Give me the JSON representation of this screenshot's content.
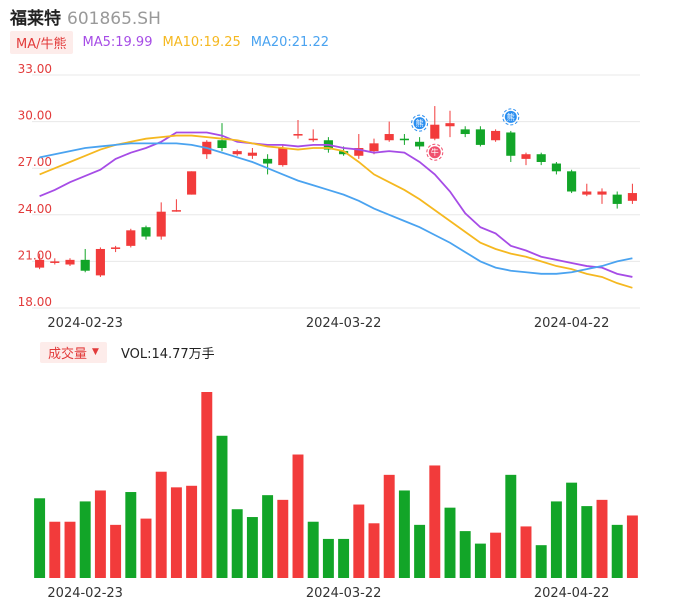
{
  "header": {
    "name": "福莱特",
    "code": "601865.SH"
  },
  "ma_legend": {
    "tag": "MA/牛熊",
    "ma5": "MA5:19.99",
    "ma10": "MA10:19.25",
    "ma20": "MA20:21.22"
  },
  "volume_legend": {
    "tag": "成交量",
    "value": "VOL:14.77万手"
  },
  "colors": {
    "up": "#f23b3b",
    "down": "#12a528",
    "ma5": "#a64ce6",
    "ma10": "#f5b820",
    "ma20": "#4aa3f0",
    "grid": "#e8e8e8",
    "axis_label": "#e23b3b",
    "text": "#333333"
  },
  "markers": [
    {
      "label": "熊",
      "index": 25,
      "kind": "bear"
    },
    {
      "label": "牛",
      "index": 26,
      "kind": "bull"
    },
    {
      "label": "熊",
      "index": 31,
      "kind": "bear"
    }
  ],
  "chart_data": [
    {
      "type": "candlestick",
      "y_ticks": [
        "33.00",
        "30.00",
        "27.00",
        "24.00",
        "21.00",
        "18.00"
      ],
      "ylim": [
        18,
        33
      ],
      "x_labels": [
        {
          "index": 3,
          "label": "2024-02-23"
        },
        {
          "index": 20,
          "label": "2024-03-22"
        },
        {
          "index": 35,
          "label": "2024-04-22"
        }
      ],
      "candles": [
        {
          "o": 20.6,
          "c": 21.1,
          "h": 21.5,
          "l": 20.5
        },
        {
          "o": 20.9,
          "c": 21.0,
          "h": 21.2,
          "l": 20.8
        },
        {
          "o": 20.8,
          "c": 21.1,
          "h": 21.2,
          "l": 20.7
        },
        {
          "o": 21.1,
          "c": 20.4,
          "h": 21.8,
          "l": 20.3
        },
        {
          "o": 20.1,
          "c": 21.8,
          "h": 21.9,
          "l": 20.0
        },
        {
          "o": 21.8,
          "c": 21.9,
          "h": 22.0,
          "l": 21.6
        },
        {
          "o": 22.0,
          "c": 23.0,
          "h": 23.1,
          "l": 21.9
        },
        {
          "o": 23.2,
          "c": 22.6,
          "h": 23.3,
          "l": 22.4
        },
        {
          "o": 22.6,
          "c": 24.2,
          "h": 24.8,
          "l": 22.4
        },
        {
          "o": 24.3,
          "c": 24.3,
          "h": 25.0,
          "l": 24.2
        },
        {
          "o": 25.3,
          "c": 26.8,
          "h": 26.8,
          "l": 25.3
        },
        {
          "o": 27.9,
          "c": 28.7,
          "h": 28.8,
          "l": 27.6
        },
        {
          "o": 28.8,
          "c": 28.3,
          "h": 29.9,
          "l": 28.1
        },
        {
          "o": 27.9,
          "c": 28.1,
          "h": 28.2,
          "l": 27.8
        },
        {
          "o": 27.8,
          "c": 28.0,
          "h": 28.3,
          "l": 27.6
        },
        {
          "o": 27.6,
          "c": 27.3,
          "h": 27.9,
          "l": 26.6
        },
        {
          "o": 27.2,
          "c": 28.3,
          "h": 28.5,
          "l": 27.1
        },
        {
          "o": 29.1,
          "c": 29.2,
          "h": 30.1,
          "l": 28.9
        },
        {
          "o": 28.9,
          "c": 28.9,
          "h": 29.5,
          "l": 28.7
        },
        {
          "o": 28.8,
          "c": 28.2,
          "h": 29.0,
          "l": 28.0
        },
        {
          "o": 28.1,
          "c": 27.9,
          "h": 28.4,
          "l": 27.8
        },
        {
          "o": 27.8,
          "c": 28.3,
          "h": 29.2,
          "l": 27.6
        },
        {
          "o": 28.1,
          "c": 28.6,
          "h": 28.9,
          "l": 27.9
        },
        {
          "o": 28.8,
          "c": 29.2,
          "h": 30.0,
          "l": 28.7
        },
        {
          "o": 28.9,
          "c": 28.8,
          "h": 29.2,
          "l": 28.5
        },
        {
          "o": 28.7,
          "c": 28.4,
          "h": 29.0,
          "l": 28.2
        },
        {
          "o": 28.9,
          "c": 29.8,
          "h": 31.0,
          "l": 28.8
        },
        {
          "o": 29.7,
          "c": 29.9,
          "h": 30.7,
          "l": 29.0
        },
        {
          "o": 29.5,
          "c": 29.2,
          "h": 29.7,
          "l": 29.0
        },
        {
          "o": 29.5,
          "c": 28.5,
          "h": 29.7,
          "l": 28.4
        },
        {
          "o": 28.8,
          "c": 29.4,
          "h": 29.5,
          "l": 28.7
        },
        {
          "o": 29.3,
          "c": 27.8,
          "h": 29.4,
          "l": 27.4
        },
        {
          "o": 27.6,
          "c": 27.9,
          "h": 28.0,
          "l": 27.2
        },
        {
          "o": 27.9,
          "c": 27.4,
          "h": 28.0,
          "l": 27.2
        },
        {
          "o": 27.3,
          "c": 26.8,
          "h": 27.4,
          "l": 26.6
        },
        {
          "o": 26.8,
          "c": 25.5,
          "h": 26.9,
          "l": 25.4
        },
        {
          "o": 25.3,
          "c": 25.5,
          "h": 26.0,
          "l": 25.2
        },
        {
          "o": 25.3,
          "c": 25.5,
          "h": 25.7,
          "l": 24.7
        },
        {
          "o": 25.3,
          "c": 24.7,
          "h": 25.5,
          "l": 24.4
        },
        {
          "o": 24.9,
          "c": 25.4,
          "h": 26.0,
          "l": 24.7
        }
      ],
      "ma5": [
        25.2,
        25.6,
        26.1,
        26.5,
        26.9,
        27.6,
        28.0,
        28.3,
        28.7,
        29.3,
        29.3,
        29.3,
        29.1,
        28.7,
        28.6,
        28.5,
        28.5,
        28.4,
        28.5,
        28.5,
        28.3,
        28.2,
        28.0,
        28.1,
        28.0,
        27.4,
        26.6,
        25.5,
        24.1,
        23.2,
        22.8,
        22.0,
        21.7,
        21.3,
        21.1,
        20.9,
        20.7,
        20.6,
        20.2,
        20.0
      ],
      "ma10": [
        26.6,
        27.0,
        27.4,
        27.8,
        28.2,
        28.5,
        28.7,
        28.9,
        29.0,
        29.1,
        29.1,
        29.0,
        28.9,
        28.8,
        28.6,
        28.4,
        28.3,
        28.2,
        28.3,
        28.3,
        28.1,
        27.4,
        26.6,
        26.1,
        25.6,
        25.0,
        24.3,
        23.6,
        22.9,
        22.2,
        21.8,
        21.5,
        21.3,
        21.0,
        20.7,
        20.5,
        20.2,
        20.0,
        19.6,
        19.3
      ],
      "ma20": [
        27.7,
        27.9,
        28.1,
        28.3,
        28.4,
        28.5,
        28.6,
        28.6,
        28.6,
        28.6,
        28.5,
        28.3,
        28.0,
        27.7,
        27.4,
        27.0,
        26.6,
        26.2,
        25.9,
        25.6,
        25.3,
        24.9,
        24.4,
        24.0,
        23.6,
        23.2,
        22.7,
        22.2,
        21.6,
        21.0,
        20.6,
        20.4,
        20.3,
        20.2,
        20.2,
        20.3,
        20.5,
        20.7,
        21.0,
        21.2
      ]
    },
    {
      "type": "bar",
      "series": [
        {
          "values": [
            51,
            36,
            36,
            49,
            56,
            34,
            55,
            38,
            68,
            58,
            59,
            119,
            91,
            44,
            39,
            53,
            50,
            79,
            36,
            25,
            25,
            47,
            35,
            66,
            56,
            34,
            72,
            45,
            30,
            22,
            29,
            66,
            33,
            21,
            49,
            61,
            46,
            50,
            34,
            40
          ]
        }
      ],
      "value_unit": "relative volume",
      "up_down": [
        "down",
        "up",
        "up",
        "down",
        "up",
        "up",
        "down",
        "up",
        "up",
        "up",
        "up",
        "up",
        "down",
        "down",
        "down",
        "down",
        "up",
        "up",
        "down",
        "down",
        "down",
        "up",
        "up",
        "up",
        "down",
        "down",
        "up",
        "down",
        "down",
        "down",
        "up",
        "down",
        "up",
        "down",
        "down",
        "down",
        "down",
        "up",
        "down",
        "up"
      ]
    }
  ]
}
